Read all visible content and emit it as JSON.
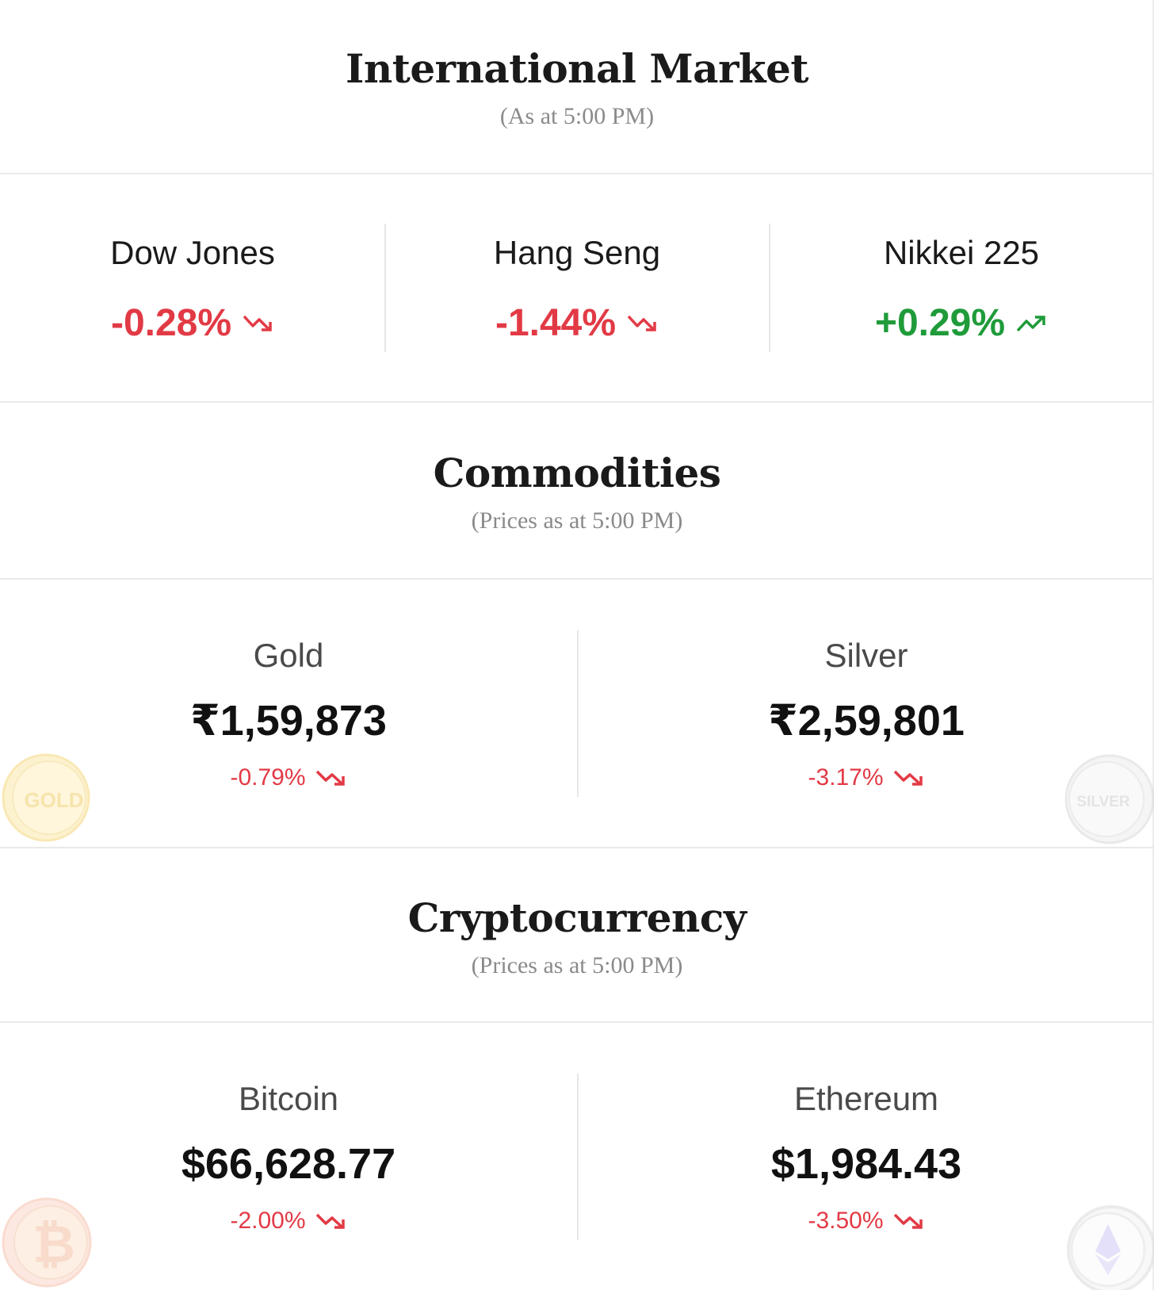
{
  "international": {
    "title": "International Market",
    "subtitle": "(As at 5:00 PM)",
    "indices": [
      {
        "name": "Dow Jones",
        "change": "-0.28%",
        "direction": "down"
      },
      {
        "name": "Hang Seng",
        "change": "-1.44%",
        "direction": "down"
      },
      {
        "name": "Nikkei 225",
        "change": "+0.29%",
        "direction": "up"
      }
    ]
  },
  "commodities": {
    "title": "Commodities",
    "subtitle": "(Prices as at 5:00 PM)",
    "items": [
      {
        "name": "Gold",
        "price": "₹1,59,873",
        "change": "-0.79%",
        "direction": "down",
        "coin_label": "GOLD"
      },
      {
        "name": "Silver",
        "price": "₹2,59,801",
        "change": "-3.17%",
        "direction": "down",
        "coin_label": "SILVER"
      }
    ]
  },
  "crypto": {
    "title": "Cryptocurrency",
    "subtitle": "(Prices as at 5:00 PM)",
    "items": [
      {
        "name": "Bitcoin",
        "price": "$66,628.77",
        "change": "-2.00%",
        "direction": "down",
        "coin_icon": "bitcoin-icon"
      },
      {
        "name": "Ethereum",
        "price": "$1,984.43",
        "change": "-3.50%",
        "direction": "down",
        "coin_icon": "ethereum-icon"
      }
    ]
  },
  "colors": {
    "negative": "#e23a45",
    "positive": "#1f9b3a",
    "divider": "#e9e9e9",
    "subtitle": "#8a8a8a"
  }
}
